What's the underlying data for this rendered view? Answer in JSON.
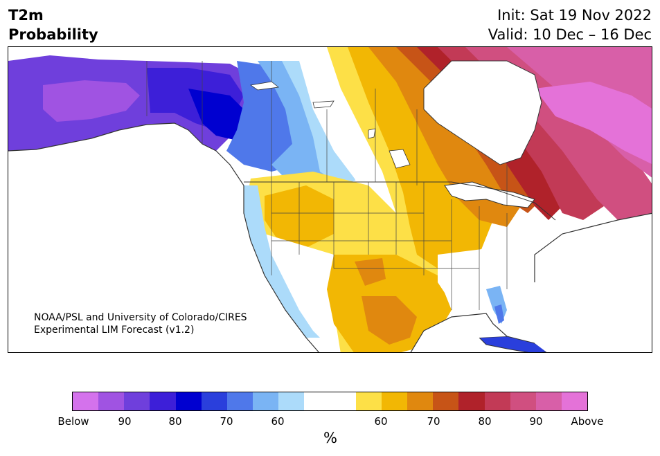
{
  "title": {
    "left_line1": "T2m",
    "left_line2": "Probability",
    "right_line1": "Init: Sat 19 Nov 2022",
    "right_line2": "Valid: 10 Dec – 16 Dec"
  },
  "credit": {
    "line1": "NOAA/PSL and University of Colorado/CIRES",
    "line2": "Experimental LIM Forecast (v1.2)"
  },
  "colorbar": {
    "unit": "%",
    "colors": [
      "#d472ec",
      "#a053e2",
      "#6f3fdc",
      "#3d1fd8",
      "#0000d0",
      "#2a3fdc",
      "#4f78ea",
      "#7ab4f4",
      "#acdbfa",
      "#ffffff",
      "#ffffff",
      "#fde047",
      "#f2b704",
      "#e0880f",
      "#c75417",
      "#b0222a",
      "#c23a56",
      "#d04f80",
      "#d85fa8",
      "#e472d8"
    ],
    "labels": [
      "Below",
      "90",
      "80",
      "70",
      "60",
      "60",
      "70",
      "80",
      "90",
      "Above"
    ]
  },
  "map": {
    "ocean": "#ffffff",
    "outline": "#333333"
  }
}
